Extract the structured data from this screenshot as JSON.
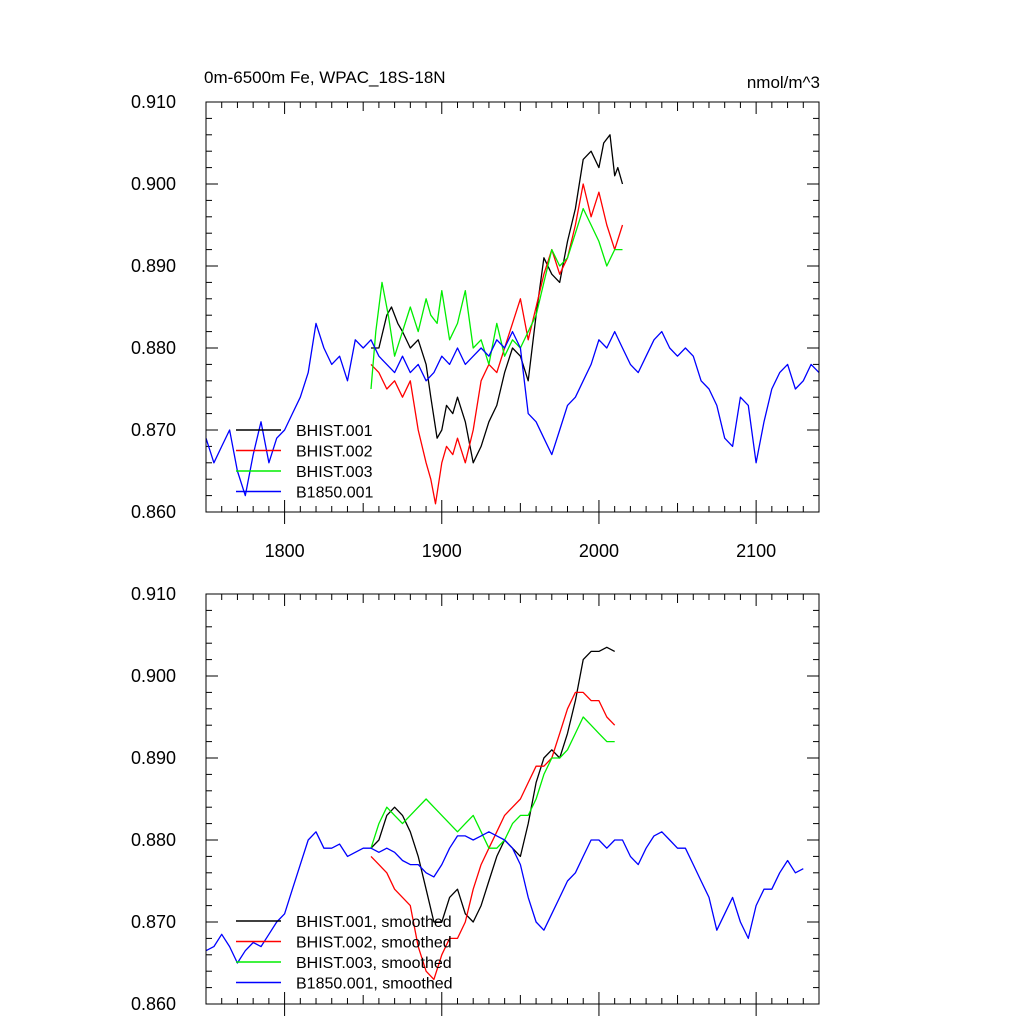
{
  "chart_data": [
    {
      "type": "line",
      "title": "0m-6500m Fe, WPAC_18S-18N",
      "units": "nmol/m^3",
      "xlim": [
        1750,
        2140
      ],
      "ylim": [
        0.86,
        0.91
      ],
      "x_ticks": [
        1800,
        1900,
        2000,
        2100
      ],
      "x_tick_labels": [
        "1800",
        "1900",
        "2000",
        "2100"
      ],
      "y_ticks": [
        0.86,
        0.87,
        0.88,
        0.89,
        0.9,
        0.91
      ],
      "y_tick_labels": [
        "0.860",
        "0.870",
        "0.880",
        "0.890",
        "0.900",
        "0.910"
      ],
      "legend_position": "bottom-left",
      "series": [
        {
          "name": "BHIST.001",
          "color": "#000000",
          "x": [
            1855,
            1860,
            1865,
            1868,
            1872,
            1875,
            1880,
            1885,
            1890,
            1893,
            1897,
            1900,
            1903,
            1907,
            1910,
            1915,
            1920,
            1925,
            1930,
            1935,
            1940,
            1945,
            1950,
            1955,
            1960,
            1965,
            1970,
            1975,
            1980,
            1985,
            1990,
            1995,
            2000,
            2003,
            2007,
            2010,
            2012,
            2015
          ],
          "y": [
            0.88,
            0.88,
            0.884,
            0.885,
            0.883,
            0.882,
            0.88,
            0.881,
            0.878,
            0.874,
            0.869,
            0.87,
            0.873,
            0.872,
            0.874,
            0.871,
            0.866,
            0.868,
            0.871,
            0.873,
            0.877,
            0.88,
            0.879,
            0.876,
            0.884,
            0.891,
            0.889,
            0.888,
            0.893,
            0.897,
            0.903,
            0.904,
            0.902,
            0.905,
            0.906,
            0.901,
            0.902,
            0.9
          ]
        },
        {
          "name": "BHIST.002",
          "color": "#ff0000",
          "x": [
            1855,
            1860,
            1865,
            1870,
            1875,
            1880,
            1885,
            1890,
            1893,
            1896,
            1900,
            1903,
            1907,
            1910,
            1915,
            1920,
            1925,
            1930,
            1935,
            1940,
            1945,
            1950,
            1955,
            1960,
            1965,
            1970,
            1975,
            1980,
            1985,
            1990,
            1995,
            2000,
            2005,
            2010,
            2015
          ],
          "y": [
            0.878,
            0.877,
            0.875,
            0.876,
            0.874,
            0.876,
            0.87,
            0.866,
            0.864,
            0.861,
            0.866,
            0.868,
            0.867,
            0.869,
            0.866,
            0.87,
            0.876,
            0.878,
            0.877,
            0.88,
            0.883,
            0.886,
            0.881,
            0.885,
            0.889,
            0.892,
            0.889,
            0.891,
            0.895,
            0.9,
            0.896,
            0.899,
            0.895,
            0.892,
            0.895
          ]
        },
        {
          "name": "BHIST.003",
          "color": "#00ee00",
          "x": [
            1855,
            1858,
            1862,
            1866,
            1870,
            1875,
            1880,
            1885,
            1890,
            1893,
            1897,
            1900,
            1905,
            1910,
            1915,
            1920,
            1925,
            1930,
            1935,
            1940,
            1945,
            1950,
            1955,
            1960,
            1965,
            1970,
            1975,
            1980,
            1985,
            1990,
            1995,
            2000,
            2005,
            2010,
            2015
          ],
          "y": [
            0.875,
            0.882,
            0.888,
            0.884,
            0.879,
            0.882,
            0.885,
            0.882,
            0.886,
            0.884,
            0.883,
            0.887,
            0.881,
            0.883,
            0.887,
            0.88,
            0.881,
            0.878,
            0.883,
            0.879,
            0.881,
            0.88,
            0.882,
            0.884,
            0.888,
            0.892,
            0.89,
            0.891,
            0.894,
            0.897,
            0.895,
            0.893,
            0.89,
            0.892,
            0.892
          ]
        },
        {
          "name": "B1850.001",
          "color": "#0000ff",
          "x": [
            1750,
            1755,
            1760,
            1765,
            1770,
            1775,
            1780,
            1785,
            1790,
            1795,
            1800,
            1805,
            1810,
            1815,
            1820,
            1825,
            1830,
            1835,
            1840,
            1845,
            1850,
            1855,
            1860,
            1865,
            1870,
            1875,
            1880,
            1885,
            1890,
            1895,
            1900,
            1905,
            1910,
            1915,
            1920,
            1925,
            1930,
            1935,
            1940,
            1945,
            1950,
            1955,
            1960,
            1965,
            1970,
            1975,
            1980,
            1985,
            1990,
            1995,
            2000,
            2005,
            2010,
            2015,
            2020,
            2025,
            2030,
            2035,
            2040,
            2045,
            2050,
            2055,
            2060,
            2065,
            2070,
            2075,
            2080,
            2085,
            2090,
            2095,
            2100,
            2105,
            2110,
            2115,
            2120,
            2125,
            2130,
            2135,
            2140
          ],
          "y": [
            0.869,
            0.866,
            0.868,
            0.87,
            0.865,
            0.862,
            0.867,
            0.871,
            0.866,
            0.869,
            0.87,
            0.872,
            0.874,
            0.877,
            0.883,
            0.88,
            0.878,
            0.879,
            0.876,
            0.881,
            0.88,
            0.881,
            0.879,
            0.878,
            0.877,
            0.879,
            0.877,
            0.878,
            0.876,
            0.877,
            0.879,
            0.878,
            0.88,
            0.878,
            0.879,
            0.88,
            0.879,
            0.881,
            0.88,
            0.882,
            0.88,
            0.872,
            0.871,
            0.869,
            0.867,
            0.87,
            0.873,
            0.874,
            0.876,
            0.878,
            0.881,
            0.88,
            0.882,
            0.88,
            0.878,
            0.877,
            0.879,
            0.881,
            0.882,
            0.88,
            0.879,
            0.88,
            0.879,
            0.876,
            0.875,
            0.873,
            0.869,
            0.868,
            0.874,
            0.873,
            0.866,
            0.871,
            0.875,
            0.877,
            0.878,
            0.875,
            0.876,
            0.878,
            0.877
          ]
        }
      ]
    },
    {
      "type": "line",
      "xlim": [
        1750,
        2140
      ],
      "ylim": [
        0.86,
        0.91
      ],
      "x_ticks": [
        1800,
        1900,
        2000,
        2100
      ],
      "y_ticks": [
        0.86,
        0.87,
        0.88,
        0.89,
        0.9,
        0.91
      ],
      "y_tick_labels": [
        "0.860",
        "0.870",
        "0.880",
        "0.890",
        "0.900",
        "0.910"
      ],
      "legend_position": "bottom-left",
      "series": [
        {
          "name": "BHIST.001, smoothed",
          "color": "#000000",
          "x": [
            1855,
            1860,
            1865,
            1870,
            1875,
            1880,
            1885,
            1890,
            1895,
            1900,
            1905,
            1910,
            1915,
            1920,
            1925,
            1930,
            1935,
            1940,
            1945,
            1950,
            1955,
            1960,
            1965,
            1970,
            1975,
            1980,
            1985,
            1990,
            1995,
            2000,
            2005,
            2010
          ],
          "y": [
            0.879,
            0.88,
            0.883,
            0.884,
            0.883,
            0.881,
            0.878,
            0.874,
            0.87,
            0.87,
            0.873,
            0.874,
            0.871,
            0.87,
            0.872,
            0.875,
            0.878,
            0.88,
            0.879,
            0.878,
            0.882,
            0.887,
            0.89,
            0.891,
            0.89,
            0.893,
            0.897,
            0.902,
            0.903,
            0.903,
            0.9035,
            0.903
          ]
        },
        {
          "name": "BHIST.002, smoothed",
          "color": "#ff0000",
          "x": [
            1855,
            1860,
            1865,
            1870,
            1875,
            1880,
            1885,
            1890,
            1895,
            1900,
            1905,
            1910,
            1915,
            1920,
            1925,
            1930,
            1935,
            1940,
            1945,
            1950,
            1955,
            1960,
            1965,
            1970,
            1975,
            1980,
            1985,
            1990,
            1995,
            2000,
            2005,
            2010
          ],
          "y": [
            0.878,
            0.877,
            0.876,
            0.874,
            0.873,
            0.872,
            0.867,
            0.864,
            0.863,
            0.866,
            0.868,
            0.868,
            0.87,
            0.874,
            0.877,
            0.879,
            0.881,
            0.883,
            0.884,
            0.885,
            0.887,
            0.889,
            0.889,
            0.89,
            0.893,
            0.896,
            0.898,
            0.898,
            0.897,
            0.897,
            0.895,
            0.894
          ]
        },
        {
          "name": "BHIST.003, smoothed",
          "color": "#00ee00",
          "x": [
            1855,
            1860,
            1865,
            1870,
            1875,
            1880,
            1885,
            1890,
            1895,
            1900,
            1905,
            1910,
            1915,
            1920,
            1925,
            1930,
            1935,
            1940,
            1945,
            1950,
            1955,
            1960,
            1965,
            1970,
            1975,
            1980,
            1985,
            1990,
            1995,
            2000,
            2005,
            2010
          ],
          "y": [
            0.879,
            0.882,
            0.884,
            0.883,
            0.882,
            0.883,
            0.884,
            0.885,
            0.884,
            0.883,
            0.882,
            0.881,
            0.882,
            0.883,
            0.881,
            0.879,
            0.879,
            0.88,
            0.882,
            0.883,
            0.883,
            0.885,
            0.888,
            0.89,
            0.89,
            0.891,
            0.893,
            0.895,
            0.894,
            0.893,
            0.892,
            0.892
          ]
        },
        {
          "name": "B1850.001, smoothed",
          "color": "#0000ff",
          "x": [
            1750,
            1755,
            1760,
            1765,
            1770,
            1775,
            1780,
            1785,
            1790,
            1795,
            1800,
            1805,
            1810,
            1815,
            1820,
            1825,
            1830,
            1835,
            1840,
            1845,
            1850,
            1855,
            1860,
            1865,
            1870,
            1875,
            1880,
            1885,
            1890,
            1895,
            1900,
            1905,
            1910,
            1915,
            1920,
            1925,
            1930,
            1935,
            1940,
            1945,
            1950,
            1955,
            1960,
            1965,
            1970,
            1975,
            1980,
            1985,
            1990,
            1995,
            2000,
            2005,
            2010,
            2015,
            2020,
            2025,
            2030,
            2035,
            2040,
            2045,
            2050,
            2055,
            2060,
            2065,
            2070,
            2075,
            2080,
            2085,
            2090,
            2095,
            2100,
            2105,
            2110,
            2115,
            2120,
            2125,
            2130
          ],
          "y": [
            0.8665,
            0.867,
            0.8685,
            0.867,
            0.865,
            0.8665,
            0.8675,
            0.867,
            0.8685,
            0.87,
            0.871,
            0.874,
            0.877,
            0.88,
            0.881,
            0.879,
            0.879,
            0.8795,
            0.878,
            0.8785,
            0.879,
            0.879,
            0.8785,
            0.879,
            0.8785,
            0.8775,
            0.877,
            0.877,
            0.876,
            0.8755,
            0.877,
            0.879,
            0.8805,
            0.8805,
            0.88,
            0.8805,
            0.881,
            0.8805,
            0.88,
            0.879,
            0.877,
            0.873,
            0.87,
            0.869,
            0.871,
            0.873,
            0.875,
            0.876,
            0.878,
            0.88,
            0.88,
            0.879,
            0.88,
            0.88,
            0.878,
            0.877,
            0.879,
            0.8805,
            0.881,
            0.88,
            0.879,
            0.879,
            0.877,
            0.875,
            0.873,
            0.869,
            0.871,
            0.873,
            0.87,
            0.868,
            0.872,
            0.874,
            0.874,
            0.876,
            0.8775,
            0.876,
            0.8765
          ]
        }
      ]
    }
  ]
}
